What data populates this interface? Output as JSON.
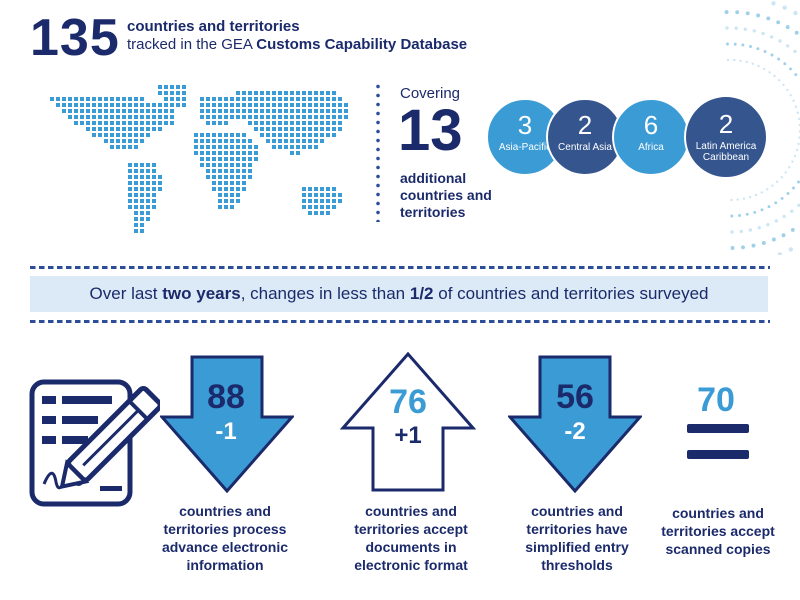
{
  "header": {
    "big_number": "135",
    "line1": "countries and territories",
    "line2_prefix": "tracked in the GEA ",
    "line2_bold": "Customs Capability Database"
  },
  "coverage": {
    "label": "Covering",
    "number": "13",
    "description": "additional countries and territories",
    "regions": [
      {
        "count": "3",
        "label": "Asia-Pacific",
        "color": "#3a9bd5"
      },
      {
        "count": "2",
        "label": "Central Asia",
        "color": "#35558f"
      },
      {
        "count": "6",
        "label": "Africa",
        "color": "#3a9bd5"
      },
      {
        "count": "2",
        "label": "Latin America Caribbean",
        "color": "#35558f"
      }
    ]
  },
  "summary": {
    "prefix": "Over last ",
    "bold1": "two years",
    "middle": ", changes in less than ",
    "bold2": "1/2",
    "suffix": " of countries and territories surveyed"
  },
  "stats": [
    {
      "number": "88",
      "change": "-1",
      "direction": "down",
      "description": "countries and territories process advance electronic information"
    },
    {
      "number": "76",
      "change": "+1",
      "direction": "up",
      "description": "countries and territories accept documents in electronic format"
    },
    {
      "number": "56",
      "change": "-2",
      "direction": "down",
      "description": "countries and territories have simplified entry thresholds"
    },
    {
      "number": "70",
      "change": "",
      "direction": "equal",
      "description": "countries and territories accept scanned copies"
    }
  ],
  "colors": {
    "navy": "#1b2a6b",
    "light_blue": "#3a9bd5",
    "steel_blue": "#35558f",
    "band": "#dbeaf6"
  },
  "icons": [
    "world-map-icon",
    "document-pen-icon",
    "arrow-down-icon",
    "arrow-up-icon",
    "equals-icon"
  ]
}
